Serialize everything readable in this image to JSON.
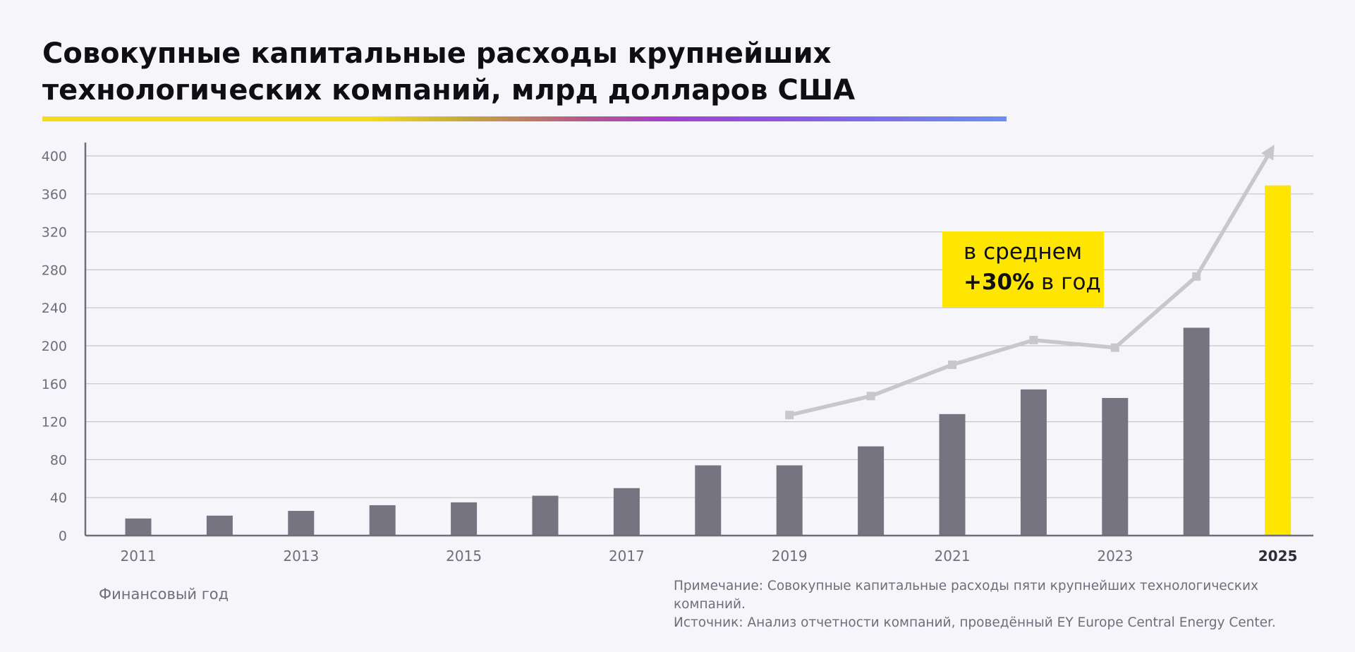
{
  "title": "Совокупные капитальные расходы крупнейших технологических компаний, млрд долларов США",
  "callout": {
    "line1": "в среднем",
    "line2_strong": "+30%",
    "line2_rest": " в год"
  },
  "xlabel": "Финансовый год",
  "note": "Примечание: Совокупные капитальные расходы пяти крупнейших технологических компаний.",
  "source": "Источник: Анализ отчетности компаний, проведённый EY Europe Central Energy Center.",
  "colors": {
    "bar": "#767480",
    "highlight": "#ffe600",
    "trend": "#c8c8cc",
    "accent_yellow": "#f5dc16"
  },
  "chart_data": {
    "type": "bar",
    "title": "Совокупные капитальные расходы крупнейших технологических компаний, млрд долларов США",
    "xlabel": "Финансовый год",
    "ylabel": "",
    "categories": [
      "2011",
      "2012",
      "2013",
      "2014",
      "2015",
      "2016",
      "2017",
      "2018",
      "2019",
      "2020",
      "2021",
      "2022",
      "2023",
      "2024",
      "2025"
    ],
    "x_tick_labels": [
      "2011",
      "2013",
      "2015",
      "2017",
      "2019",
      "2021",
      "2023",
      "2025"
    ],
    "highlight_category": "2025",
    "values": [
      18,
      21,
      26,
      32,
      35,
      42,
      50,
      74,
      74,
      94,
      128,
      154,
      145,
      219,
      369
    ],
    "ylim": [
      0,
      400
    ],
    "yticks": [
      0,
      40,
      80,
      120,
      160,
      200,
      240,
      280,
      320,
      360,
      400
    ],
    "grid": true,
    "trend_line": {
      "x": [
        "2019",
        "2020",
        "2021",
        "2022",
        "2023",
        "2024"
      ],
      "values": [
        127,
        147,
        180,
        206,
        198,
        273
      ],
      "arrow_to": {
        "x": "2025",
        "value": 420
      }
    }
  }
}
